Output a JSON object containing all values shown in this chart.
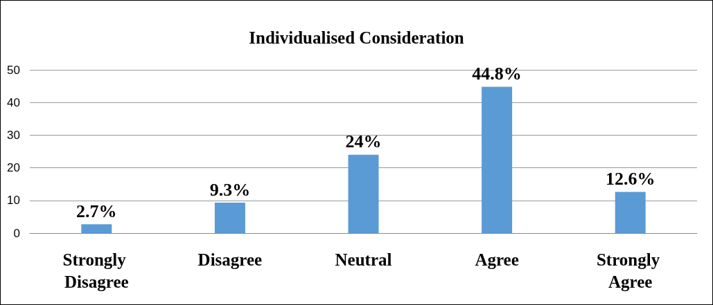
{
  "chart_data": {
    "type": "bar",
    "title": "Individualised Consideration",
    "categories": [
      "Strongly Disagree",
      "Disagree",
      "Neutral",
      "Agree",
      "Strongly Agree"
    ],
    "values": [
      2.7,
      9.3,
      24,
      44.8,
      12.6
    ],
    "value_labels": [
      "2.7%",
      "9.3%",
      "24%",
      "44.8%",
      "12.6%"
    ],
    "color": "#5b9bd5",
    "ylim": [
      0,
      50
    ],
    "yticks": [
      0,
      10,
      20,
      30,
      40,
      50
    ],
    "grid": "y"
  }
}
